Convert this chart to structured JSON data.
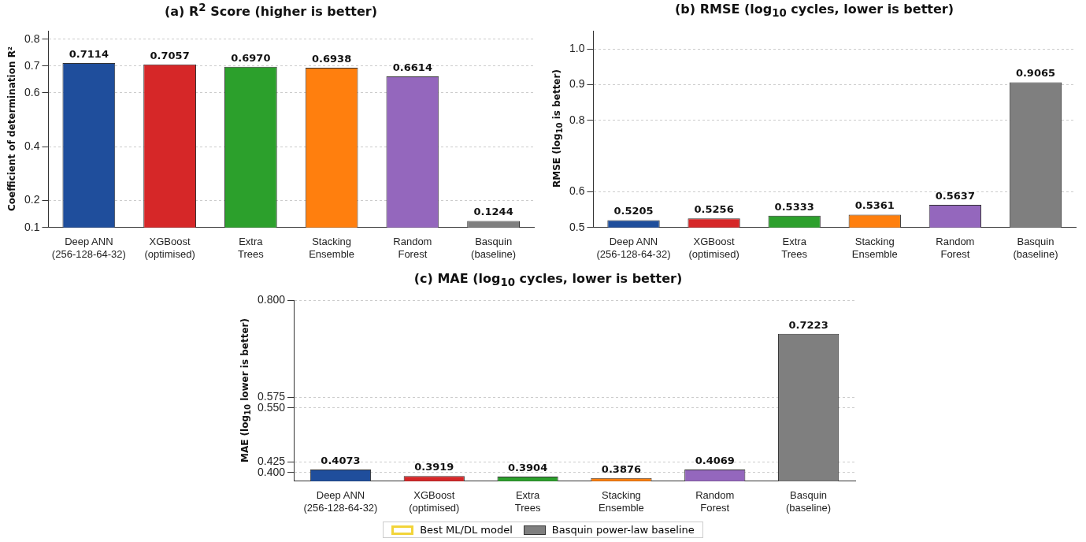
{
  "chart_data": [
    {
      "type": "bar",
      "title": "(a) R$^{2}$ Score (higher is better)",
      "ylabel": "Coefficient of determination R²",
      "categories": [
        "Deep ANN\n(256-128-64-32)",
        "XGBoost\n(optimised)",
        "Extra\nTrees",
        "Stacking\nEnsemble",
        "Random\nForest",
        "Basquin\n(baseline)"
      ],
      "values": [
        0.7114,
        0.7057,
        0.697,
        0.6938,
        0.6614,
        0.1244
      ],
      "value_labels": [
        "0.7114",
        "0.7057",
        "0.6970",
        "0.6938",
        "0.6614",
        "0.1244"
      ],
      "colors": [
        "#1f4e9c",
        "#d62728",
        "#2ca02c",
        "#ff7f0e",
        "#9467bd",
        "#7f7f7f"
      ],
      "ylim": [
        0.1,
        0.83
      ],
      "yticks": [
        0.1,
        0.2,
        0.4,
        0.6,
        0.7,
        0.8
      ],
      "grid": "y"
    },
    {
      "type": "bar",
      "title": "(b) RMSE (log$_{10}$ cycles, lower is better)",
      "ylabel": "RMSE (log$_{10}$ is better)",
      "categories": [
        "Deep ANN\n(256-128-64-32)",
        "XGBoost\n(optimised)",
        "Extra\nTrees",
        "Stacking\nEnsemble",
        "Random\nForest",
        "Basquin\n(baseline)"
      ],
      "values": [
        0.5205,
        0.5256,
        0.5333,
        0.5361,
        0.5637,
        0.9065
      ],
      "value_labels": [
        "0.5205",
        "0.5256",
        "0.5333",
        "0.5361",
        "0.5637",
        "0.9065"
      ],
      "colors": [
        "#1f4e9c",
        "#d62728",
        "#2ca02c",
        "#ff7f0e",
        "#9467bd",
        "#7f7f7f"
      ],
      "ylim": [
        0.5,
        1.05
      ],
      "yticks": [
        0.5,
        0.6,
        0.8,
        0.9,
        {
          "value": 1,
          "label": "1.0"
        }
      ],
      "grid": "y"
    },
    {
      "type": "bar",
      "title": "(c) MAE (log$_{10}$ cycles, lower is better)",
      "ylabel": "MAE (log$_{10}$ lower is better)",
      "categories": [
        "Deep ANN\n(256-128-64-32)",
        "XGBoost\n(optimised)",
        "Extra\nTrees",
        "Stacking\nEnsemble",
        "Random\nForest",
        "Basquin\n(baseline)"
      ],
      "values": [
        0.4073,
        0.3919,
        0.3904,
        0.3876,
        0.4069,
        0.7223
      ],
      "value_labels": [
        "0.4073",
        "0.3919",
        "0.3904",
        "0.3876",
        "0.4069",
        "0.7223"
      ],
      "colors": [
        "#1f4e9c",
        "#d62728",
        "#2ca02c",
        "#ff7f0e",
        "#9467bd",
        "#7f7f7f"
      ],
      "ylim": [
        0.38,
        0.8
      ],
      "yticks": [
        {
          "value": 0.4,
          "label": "0.400"
        },
        {
          "value": 0.425,
          "label": "0.425"
        },
        {
          "value": 0.55,
          "label": "0.550"
        },
        {
          "value": 0.575,
          "label": "0.575"
        },
        {
          "value": 0.8,
          "label": "0.800"
        }
      ],
      "grid": "y",
      "annotations": [
        "Best ML/DL model",
        "Basquin power-law baseline"
      ]
    }
  ]
}
